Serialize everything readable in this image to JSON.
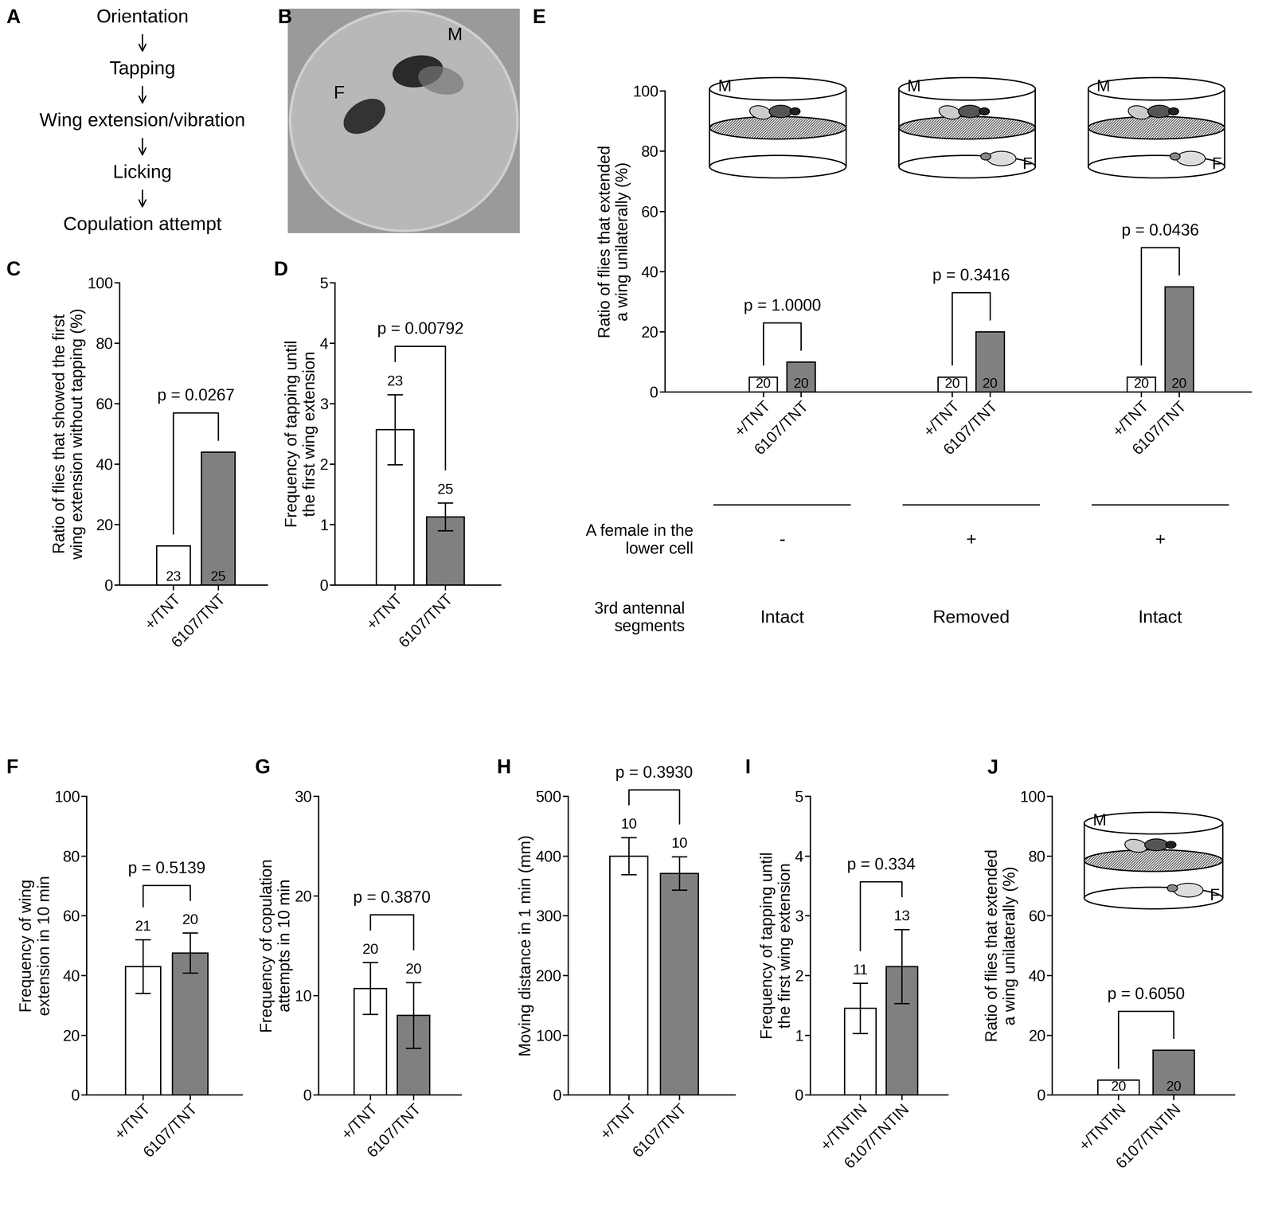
{
  "flowchart": {
    "panel": "A",
    "steps": [
      "Orientation",
      "Tapping",
      "Wing extension/vibration",
      "Licking",
      "Copulation attempt"
    ]
  },
  "photo": {
    "panel": "B",
    "labels": [
      "F",
      "M"
    ]
  },
  "chart_data": [
    {
      "panel": "C",
      "type": "bar",
      "ylabel": "Ratio of flies that showed the first wing extension without tapping (%)",
      "categories": [
        "+/TNT",
        "6107/TNT"
      ],
      "values": [
        13,
        44
      ],
      "n": [
        23,
        25
      ],
      "colors": [
        "#ffffff",
        "#808080"
      ],
      "ylim": [
        0,
        100
      ],
      "yticks": [
        0,
        20,
        40,
        60,
        80,
        100
      ],
      "annotation": "p = 0.0267"
    },
    {
      "panel": "D",
      "type": "bar",
      "ylabel": "Frequency of tapping until the first wing extension",
      "categories": [
        "+/TNT",
        "6107/TNT"
      ],
      "values": [
        2.57,
        1.13
      ],
      "errors": [
        0.58,
        0.23
      ],
      "n": [
        23,
        25
      ],
      "colors": [
        "#ffffff",
        "#808080"
      ],
      "ylim": [
        0,
        5
      ],
      "yticks": [
        0,
        1,
        2,
        3,
        4,
        5
      ],
      "annotation": "p = 0.00792"
    },
    {
      "panel": "E",
      "type": "bar",
      "ylabel": "Ratio of flies that extended a wing unilaterally (%)",
      "categories": [
        "+/TNT",
        "6107/TNT",
        "+/TNT",
        "6107/TNT",
        "+/TNT",
        "6107/TNT"
      ],
      "values": [
        5,
        10,
        5,
        20,
        5,
        35
      ],
      "n": [
        20,
        20,
        20,
        20,
        20,
        20
      ],
      "colors": [
        "#ffffff",
        "#808080",
        "#ffffff",
        "#808080",
        "#ffffff",
        "#808080"
      ],
      "ylim": [
        0,
        100
      ],
      "yticks": [
        0,
        20,
        40,
        60,
        80,
        100
      ],
      "condition_labels": [
        "A female in the lower cell",
        "3rd antennal segments"
      ],
      "groups": [
        {
          "annotation": "p = 1.0000",
          "inset": [
            "M"
          ],
          "conditions": [
            "-",
            "Intact"
          ]
        },
        {
          "annotation": "p = 0.3416",
          "inset": [
            "M",
            "F"
          ],
          "conditions": [
            "+",
            "Removed"
          ]
        },
        {
          "annotation": "p = 0.0436",
          "inset": [
            "M",
            "F"
          ],
          "conditions": [
            "+",
            "Intact"
          ]
        }
      ]
    },
    {
      "panel": "F",
      "type": "bar",
      "ylabel": "Frequency of wing extension in 10 min",
      "categories": [
        "+/TNT",
        "6107/TNT"
      ],
      "values": [
        43,
        47.5
      ],
      "errors": [
        9,
        6.7
      ],
      "n": [
        21,
        20
      ],
      "colors": [
        "#ffffff",
        "#808080"
      ],
      "ylim": [
        0,
        100
      ],
      "yticks": [
        0,
        20,
        40,
        60,
        80,
        100
      ],
      "annotation": "p = 0.5139"
    },
    {
      "panel": "G",
      "type": "bar",
      "ylabel": "Frequency of copulation attempts in 10 min",
      "categories": [
        "+/TNT",
        "6107/TNT"
      ],
      "values": [
        10.7,
        8
      ],
      "errors": [
        2.6,
        3.3
      ],
      "n": [
        20,
        20
      ],
      "colors": [
        "#ffffff",
        "#808080"
      ],
      "ylim": [
        0,
        30
      ],
      "yticks": [
        0,
        10,
        20,
        30
      ],
      "annotation": "p = 0.3870"
    },
    {
      "panel": "H",
      "type": "bar",
      "ylabel": "Moving distance in 1 min (mm)",
      "categories": [
        "+/TNT",
        "6107/TNT"
      ],
      "values": [
        400,
        371
      ],
      "errors": [
        31,
        28
      ],
      "n": [
        10,
        10
      ],
      "colors": [
        "#ffffff",
        "#808080"
      ],
      "ylim": [
        0,
        500
      ],
      "yticks": [
        0,
        100,
        200,
        300,
        400,
        500
      ],
      "annotation": "p = 0.3930"
    },
    {
      "panel": "I",
      "type": "bar",
      "ylabel": "Frequency of tapping until the first wing extension",
      "categories": [
        "+/TNTIN",
        "6107/TNTIN"
      ],
      "values": [
        1.45,
        2.15
      ],
      "errors": [
        0.42,
        0.62
      ],
      "n": [
        11,
        13
      ],
      "colors": [
        "#ffffff",
        "#808080"
      ],
      "ylim": [
        0,
        5
      ],
      "yticks": [
        0,
        1,
        2,
        3,
        4,
        5
      ],
      "annotation": "p = 0.334"
    },
    {
      "panel": "J",
      "type": "bar",
      "ylabel": "Ratio of flies that extended a wing unilaterally (%)",
      "categories": [
        "+/TNTIN",
        "6107/TNTIN"
      ],
      "values": [
        5,
        15
      ],
      "n": [
        20,
        20
      ],
      "colors": [
        "#ffffff",
        "#808080"
      ],
      "ylim": [
        0,
        100
      ],
      "yticks": [
        0,
        20,
        40,
        60,
        80,
        100
      ],
      "inset": [
        "M",
        "F"
      ],
      "annotation": "p = 0.6050"
    }
  ]
}
